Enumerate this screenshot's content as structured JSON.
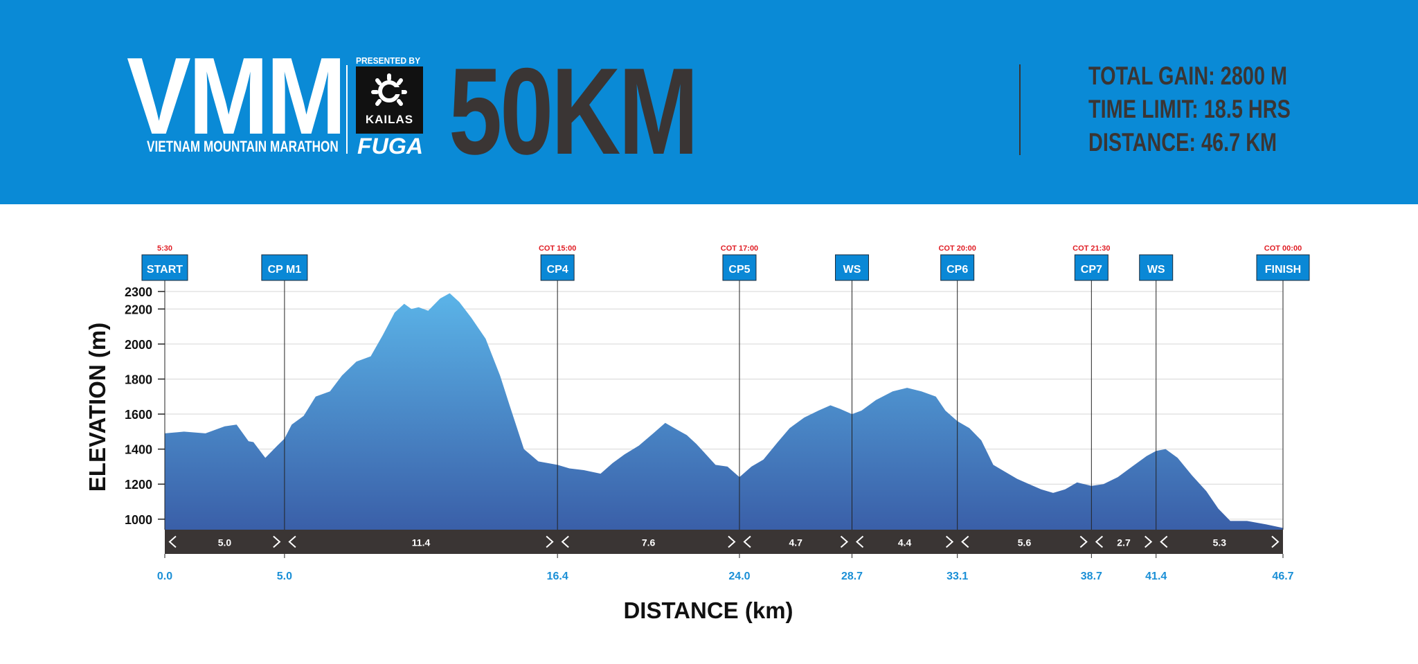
{
  "header": {
    "logo_text": "VMM",
    "logo_subtitle": "VIETNAM MOUNTAIN MARATHON",
    "presented_by": "PRESENTED BY",
    "sponsor_brand": "KAILAS",
    "sponsor_subbrand": "FUGA",
    "race_distance_title": "50KM",
    "stats": {
      "total_gain": "TOTAL GAIN: 2800 M",
      "time_limit": "TIME LIMIT: 18.5 HRS",
      "distance": "DISTANCE: 46.7 KM"
    }
  },
  "colors": {
    "header_bg": "#0a8ad6",
    "header_dark_text": "#3a3534",
    "station_box": "#0a88d6",
    "cutoff_red": "#e01e25",
    "km_blue": "#1a8fd6",
    "segment_bar": "#3a3534",
    "profile_top": "#5bb4e8",
    "profile_bottom": "#3a5fa8"
  },
  "chart_data": {
    "type": "area",
    "xlabel": "DISTANCE (km)",
    "ylabel": "ELEVATION (m)",
    "xlim": [
      0,
      46.7
    ],
    "ylim": [
      940,
      2300
    ],
    "y_ticks": [
      1000,
      1200,
      1400,
      1600,
      1800,
      2000,
      2200,
      2300
    ],
    "x_ticks": [
      {
        "value": 0.0,
        "label": "0.0"
      },
      {
        "value": 5.0,
        "label": "5.0"
      },
      {
        "value": 16.4,
        "label": "16.4"
      },
      {
        "value": 24.0,
        "label": "24.0"
      },
      {
        "value": 28.7,
        "label": "28.7"
      },
      {
        "value": 33.1,
        "label": "33.1"
      },
      {
        "value": 38.7,
        "label": "38.7"
      },
      {
        "value": 41.4,
        "label": "41.4"
      },
      {
        "value": 46.7,
        "label": "46.7"
      }
    ],
    "stations": [
      {
        "km": 0.0,
        "label": "START",
        "cutoff": "5:30"
      },
      {
        "km": 5.0,
        "label": "CP M1",
        "cutoff": ""
      },
      {
        "km": 16.4,
        "label": "CP4",
        "cutoff": "COT 15:00"
      },
      {
        "km": 24.0,
        "label": "CP5",
        "cutoff": "COT 17:00"
      },
      {
        "km": 28.7,
        "label": "WS",
        "cutoff": ""
      },
      {
        "km": 33.1,
        "label": "CP6",
        "cutoff": "COT 20:00"
      },
      {
        "km": 38.7,
        "label": "CP7",
        "cutoff": "COT 21:30"
      },
      {
        "km": 41.4,
        "label": "WS",
        "cutoff": ""
      },
      {
        "km": 46.7,
        "label": "FINISH",
        "cutoff": "COT 00:00"
      }
    ],
    "segments": [
      {
        "from": 0.0,
        "to": 5.0,
        "label": "5.0"
      },
      {
        "from": 5.0,
        "to": 16.4,
        "label": "11.4"
      },
      {
        "from": 16.4,
        "to": 24.0,
        "label": "7.6"
      },
      {
        "from": 24.0,
        "to": 28.7,
        "label": "4.7"
      },
      {
        "from": 28.7,
        "to": 33.1,
        "label": "4.4"
      },
      {
        "from": 33.1,
        "to": 38.7,
        "label": "5.6"
      },
      {
        "from": 38.7,
        "to": 41.4,
        "label": "2.7"
      },
      {
        "from": 41.4,
        "to": 46.7,
        "label": "5.3"
      }
    ],
    "profile": {
      "x": [
        0.0,
        0.8,
        1.7,
        2.5,
        3.0,
        3.5,
        3.7,
        4.2,
        4.7,
        5.0,
        5.3,
        5.8,
        6.3,
        6.9,
        7.4,
        8.0,
        8.6,
        9.1,
        9.6,
        10.0,
        10.3,
        10.6,
        11.0,
        11.5,
        11.9,
        12.3,
        12.8,
        13.4,
        14.0,
        14.4,
        15.0,
        15.6,
        16.4,
        16.9,
        17.5,
        18.2,
        18.7,
        19.2,
        19.8,
        20.4,
        20.9,
        21.4,
        21.8,
        22.2,
        22.6,
        23.0,
        23.5,
        24.0,
        24.5,
        25.0,
        25.6,
        26.1,
        26.7,
        27.3,
        27.8,
        28.2,
        28.7,
        29.1,
        29.7,
        30.4,
        31.0,
        31.6,
        32.2,
        32.6,
        33.1,
        33.6,
        34.1,
        34.6,
        35.1,
        35.6,
        36.1,
        36.6,
        37.1,
        37.6,
        38.1,
        38.7,
        39.2,
        39.8,
        40.4,
        41.0,
        41.4,
        41.8,
        42.3,
        42.9,
        43.5,
        44.0,
        44.5,
        45.2,
        46.0,
        46.7
      ],
      "y": [
        1490,
        1500,
        1490,
        1530,
        1540,
        1445,
        1440,
        1350,
        1420,
        1460,
        1540,
        1590,
        1700,
        1730,
        1820,
        1900,
        1930,
        2050,
        2180,
        2230,
        2200,
        2210,
        2190,
        2260,
        2290,
        2240,
        2150,
        2030,
        1820,
        1650,
        1400,
        1330,
        1310,
        1290,
        1280,
        1260,
        1320,
        1370,
        1420,
        1490,
        1550,
        1510,
        1480,
        1430,
        1370,
        1310,
        1300,
        1240,
        1300,
        1340,
        1440,
        1520,
        1580,
        1620,
        1650,
        1630,
        1600,
        1620,
        1680,
        1730,
        1750,
        1730,
        1700,
        1620,
        1560,
        1520,
        1450,
        1310,
        1270,
        1230,
        1200,
        1170,
        1150,
        1170,
        1210,
        1190,
        1200,
        1240,
        1300,
        1360,
        1390,
        1400,
        1350,
        1250,
        1160,
        1060,
        990,
        990,
        970,
        950
      ]
    }
  }
}
